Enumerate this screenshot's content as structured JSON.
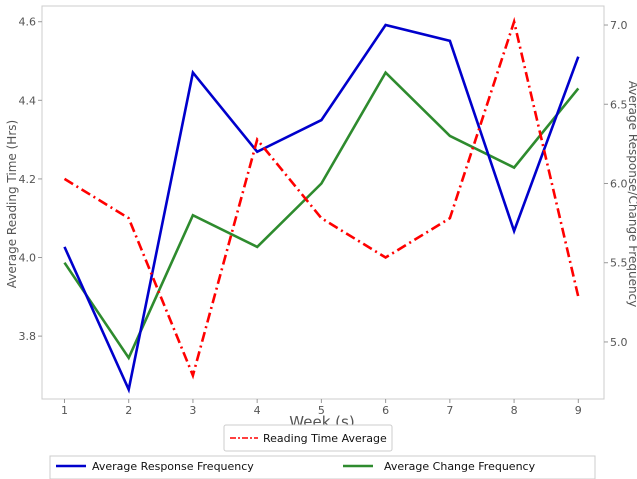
{
  "chart_data": {
    "type": "line",
    "x": [
      1,
      2,
      3,
      4,
      5,
      6,
      7,
      8,
      9
    ],
    "xlabel": "Week (s)",
    "ylabel_left": "Average Reading Time (Hrs)",
    "ylabel_right": "Average Response/Change Frequency",
    "xlim": [
      0.65,
      9.4
    ],
    "ylim_left": [
      3.64,
      4.64
    ],
    "ylim_right": [
      4.64,
      7.12
    ],
    "xticks": [
      1,
      2,
      3,
      4,
      5,
      6,
      7,
      8,
      9
    ],
    "yticks_left": [
      "3.8",
      "4.0",
      "4.2",
      "4.4",
      "4.6"
    ],
    "yticks_right": [
      "5.0",
      "5.5",
      "6.0",
      "6.5",
      "7.0"
    ],
    "grid": false,
    "series": [
      {
        "name": "Reading Time Average",
        "axis": "left",
        "color": "#ff0000",
        "style": "dashdot",
        "values": [
          4.2,
          4.1,
          3.7,
          4.3,
          4.1,
          4.0,
          4.1,
          4.6,
          3.9
        ]
      },
      {
        "name": "Average Response Frequency",
        "axis": "right",
        "color": "#0000cc",
        "style": "solid",
        "values": [
          5.6,
          4.7,
          6.7,
          6.2,
          6.4,
          7.0,
          6.9,
          5.7,
          6.8
        ]
      },
      {
        "name": "Average Change Frequency",
        "axis": "right",
        "color": "#2e8b2e",
        "style": "solid",
        "values": [
          5.5,
          4.9,
          5.8,
          5.6,
          6.0,
          6.7,
          6.3,
          6.1,
          6.6
        ]
      }
    ],
    "legends": [
      {
        "placement": "below-top",
        "entries": [
          "Reading Time Average"
        ]
      },
      {
        "placement": "below-bottom",
        "entries": [
          "Average Response Frequency",
          "Average Change Frequency"
        ]
      }
    ]
  }
}
